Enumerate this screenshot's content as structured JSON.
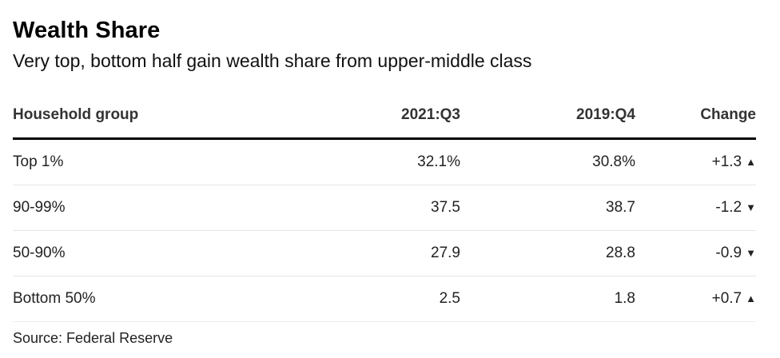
{
  "title": "Wealth Share",
  "subtitle": "Very top, bottom half gain wealth share from upper-middle class",
  "source": "Source: Federal Reserve",
  "colors": {
    "positive": "#18b37a",
    "negative": "#ee3557",
    "header_rule": "#000000"
  },
  "chart_data": {
    "type": "table",
    "columns": [
      "Household group",
      "2021:Q3",
      "2019:Q4",
      "Change"
    ],
    "rows": [
      {
        "group": "Top 1%",
        "q3": "32.1%",
        "q4": "30.8%",
        "change": "+1.3",
        "direction": "up",
        "arrow": "▲"
      },
      {
        "group": "90-99%",
        "q3": "37.5",
        "q4": "38.7",
        "change": "-1.2",
        "direction": "down",
        "arrow": "▼"
      },
      {
        "group": "50-90%",
        "q3": "27.9",
        "q4": "28.8",
        "change": "-0.9",
        "direction": "down",
        "arrow": "▼"
      },
      {
        "group": "Bottom 50%",
        "q3": "2.5",
        "q4": "1.8",
        "change": "+0.7",
        "direction": "up",
        "arrow": "▲"
      }
    ]
  }
}
